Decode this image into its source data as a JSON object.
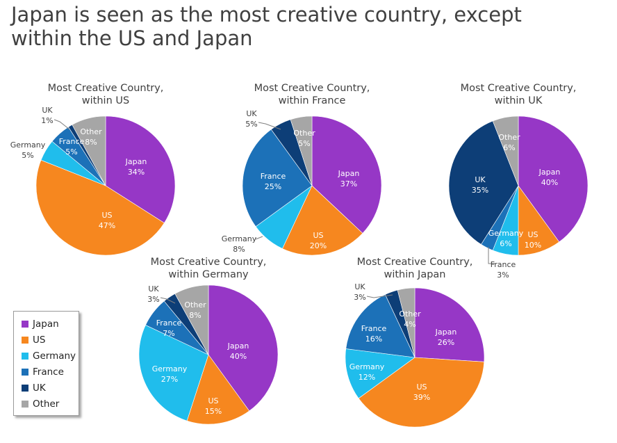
{
  "title_lines": [
    "Japan is seen as the most creative country, except",
    "within the US and Japan"
  ],
  "colors": {
    "Japan": "#9637c6",
    "US": "#f6871f",
    "Germany": "#20bdec",
    "France": "#1c71b8",
    "UK": "#0d3e77",
    "Other": "#a6a6a6"
  },
  "legend": [
    {
      "label": "Japan",
      "key": "Japan"
    },
    {
      "label": "US",
      "key": "US"
    },
    {
      "label": "Germany",
      "key": "Germany"
    },
    {
      "label": "France",
      "key": "France"
    },
    {
      "label": "UK",
      "key": "UK"
    },
    {
      "label": "Other",
      "key": "Other"
    }
  ],
  "chart_data": [
    {
      "type": "pie",
      "title": [
        "Most Creative Country,",
        "within US"
      ],
      "slices": [
        {
          "name": "Japan",
          "label": "Japan",
          "value": 34,
          "pct": "34%"
        },
        {
          "name": "US",
          "label": "US",
          "value": 47,
          "pct": "47%"
        },
        {
          "name": "Germany",
          "label": "Germany",
          "value": 5,
          "pct": "5%"
        },
        {
          "name": "France",
          "label": "France",
          "value": 5,
          "pct": "5%"
        },
        {
          "name": "UK",
          "label": "UK",
          "value": 1,
          "pct": "1%"
        },
        {
          "name": "Other",
          "label": "Other",
          "value": 8,
          "pct": "8%"
        }
      ]
    },
    {
      "type": "pie",
      "title": [
        "Most Creative Country,",
        "within France"
      ],
      "slices": [
        {
          "name": "Japan",
          "label": "Japan",
          "value": 37,
          "pct": "37%"
        },
        {
          "name": "US",
          "label": "US",
          "value": 20,
          "pct": "20%"
        },
        {
          "name": "Germany",
          "label": "Germany",
          "value": 8,
          "pct": "8%"
        },
        {
          "name": "France",
          "label": "France",
          "value": 25,
          "pct": "25%"
        },
        {
          "name": "UK",
          "label": "UK",
          "value": 5,
          "pct": "5%"
        },
        {
          "name": "Other",
          "label": "Other",
          "value": 5,
          "pct": "5%"
        }
      ]
    },
    {
      "type": "pie",
      "title": [
        "Most Creative Country,",
        "within UK"
      ],
      "slices": [
        {
          "name": "Japan",
          "label": "Japan",
          "value": 40,
          "pct": "40%"
        },
        {
          "name": "US",
          "label": "US",
          "value": 10,
          "pct": "10%"
        },
        {
          "name": "Germany",
          "label": "Germany",
          "value": 6,
          "pct": "6%"
        },
        {
          "name": "France",
          "label": "France",
          "value": 3,
          "pct": "3%"
        },
        {
          "name": "UK",
          "label": "UK",
          "value": 35,
          "pct": "35%"
        },
        {
          "name": "Other",
          "label": "Other",
          "value": 6,
          "pct": "6%"
        }
      ]
    },
    {
      "type": "pie",
      "title": [
        "Most Creative Country,",
        "within Germany"
      ],
      "slices": [
        {
          "name": "Japan",
          "label": "Japan",
          "value": 40,
          "pct": "40%"
        },
        {
          "name": "US",
          "label": "US",
          "value": 15,
          "pct": "15%"
        },
        {
          "name": "Germany",
          "label": "Germany",
          "value": 27,
          "pct": "27%"
        },
        {
          "name": "France",
          "label": "France",
          "value": 7,
          "pct": "7%"
        },
        {
          "name": "UK",
          "label": "UK",
          "value": 3,
          "pct": "3%"
        },
        {
          "name": "Other",
          "label": "Other",
          "value": 8,
          "pct": "8%"
        }
      ]
    },
    {
      "type": "pie",
      "title": [
        "Most Creative Country,",
        "within Japan"
      ],
      "slices": [
        {
          "name": "Japan",
          "label": "Japan",
          "value": 26,
          "pct": "26%"
        },
        {
          "name": "US",
          "label": "US",
          "value": 39,
          "pct": "39%"
        },
        {
          "name": "Germany",
          "label": "Germany",
          "value": 12,
          "pct": "12%"
        },
        {
          "name": "France",
          "label": "France",
          "value": 16,
          "pct": "16%"
        },
        {
          "name": "UK",
          "label": "UK",
          "value": 3,
          "pct": "3%"
        },
        {
          "name": "Other",
          "label": "Other",
          "value": 4,
          "pct": "4%"
        }
      ]
    }
  ]
}
